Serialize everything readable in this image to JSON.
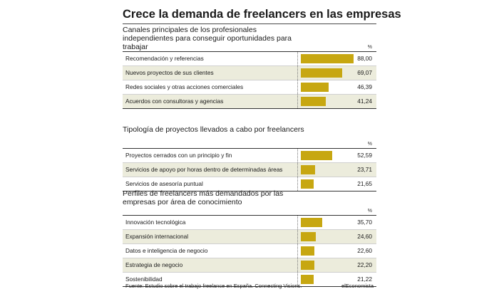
{
  "colors": {
    "bar": "#c7a711",
    "shade": "#ececdc"
  },
  "chart_title": "Crece la demanda de freelancers en las empresas",
  "chart_data": [
    {
      "type": "bar",
      "title": "Canales principales de los profesionales independientes para conseguir oportunidades para trabajar",
      "unit": "%",
      "xlim": [
        0,
        100
      ],
      "categories": [
        "Recomendación y referencias",
        "Nuevos proyectos de sus clientes",
        "Redes sociales y otras acciones comerciales",
        "Acuerdos con consultoras y agencias"
      ],
      "values": [
        88.0,
        69.07,
        46.39,
        41.24
      ],
      "value_labels": [
        "88,00",
        "69,07",
        "46,39",
        "41,24"
      ]
    },
    {
      "type": "bar",
      "title": "Tipología de proyectos llevados a cabo por freelancers",
      "unit": "%",
      "xlim": [
        0,
        100
      ],
      "categories": [
        "Proyectos cerrados con un principio y fin",
        "Servicios de apoyo por horas dentro de determinadas áreas",
        "Servicios de asesoría puntual"
      ],
      "values": [
        52.59,
        23.71,
        21.65
      ],
      "value_labels": [
        "52,59",
        "23,71",
        "21,65"
      ]
    },
    {
      "type": "bar",
      "title": "Perfiles de freelancers más demandados por las empresas por área de conocimiento",
      "unit": "%",
      "xlim": [
        0,
        100
      ],
      "categories": [
        "Innovación tecnológica",
        "Expansión internacional",
        "Datos e inteligencia de negocio",
        "Estrategia de negocio",
        "Sostenibilidad"
      ],
      "values": [
        35.7,
        24.6,
        22.6,
        22.2,
        21.22
      ],
      "value_labels": [
        "35,70",
        "24,60",
        "22,60",
        "22,20",
        "21,22"
      ]
    }
  ],
  "footer": {
    "source": "Fuente: Estudio sobre el trabajo freelance en España. Connecting Visions.",
    "credit": "elEconomista"
  }
}
